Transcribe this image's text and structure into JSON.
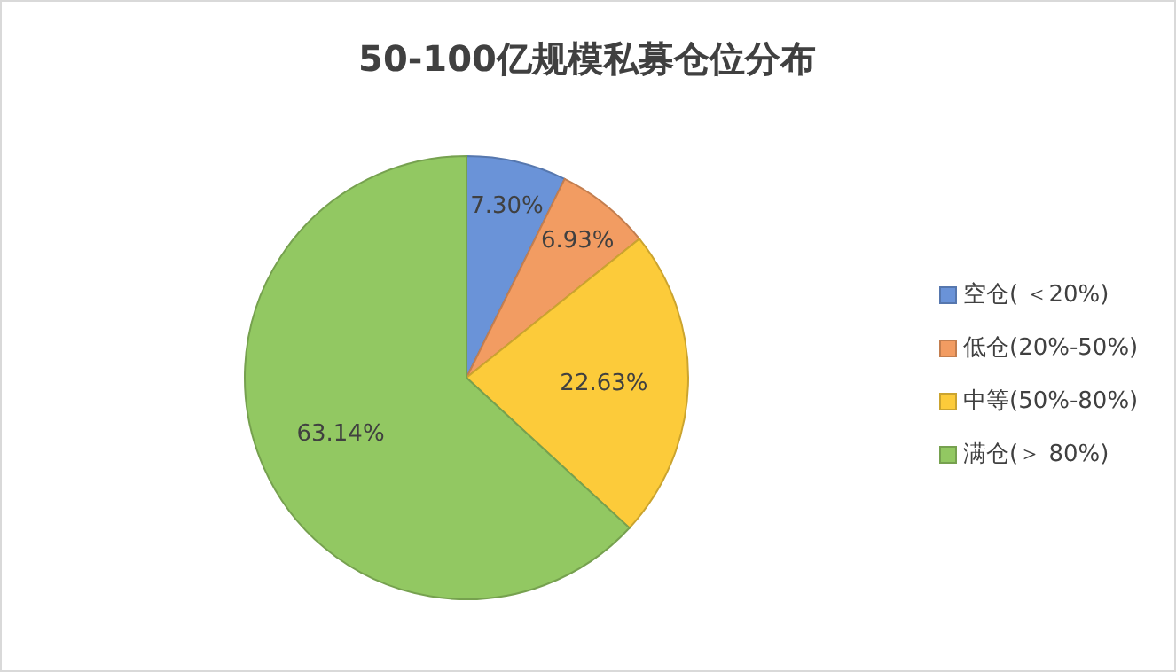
{
  "chart_data": {
    "type": "pie",
    "title": "50-100亿规模私募仓位分布",
    "categories": [
      "空仓( ＜20%)",
      "低仓(20%-50%)",
      "中等(50%-80%)",
      "满仓(＞ 80%)"
    ],
    "values": [
      7.3,
      6.93,
      22.63,
      63.14
    ],
    "colors": [
      "#6a93d8",
      "#f29c62",
      "#fccb3a",
      "#92c862"
    ],
    "value_labels": [
      "7.30%",
      "6.93%",
      "22.63%",
      "63.14%"
    ],
    "legend": "right"
  }
}
